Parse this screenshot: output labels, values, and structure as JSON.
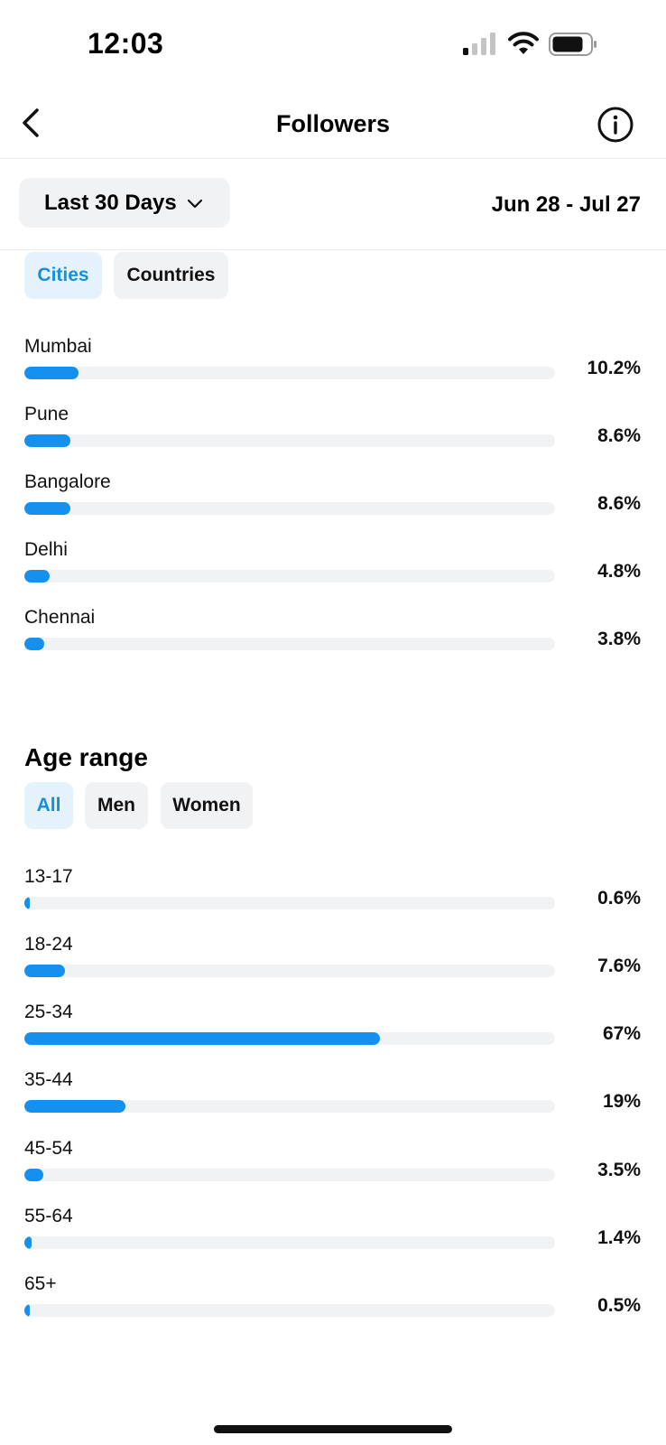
{
  "status_bar": {
    "time": "12:03"
  },
  "header": {
    "title": "Followers"
  },
  "date_filter": {
    "range_label": "Last 30 Days",
    "date_span": "Jun 28 - Jul 27"
  },
  "location": {
    "tabs": [
      {
        "label": "Cities",
        "active": true
      },
      {
        "label": "Countries",
        "active": false
      }
    ],
    "rows": [
      {
        "label": "Mumbai",
        "value": "10.2%",
        "fraction": 0.102
      },
      {
        "label": "Pune",
        "value": "8.6%",
        "fraction": 0.086
      },
      {
        "label": "Bangalore",
        "value": "8.6%",
        "fraction": 0.086
      },
      {
        "label": "Delhi",
        "value": "4.8%",
        "fraction": 0.048
      },
      {
        "label": "Chennai",
        "value": "3.8%",
        "fraction": 0.038
      }
    ]
  },
  "age_range": {
    "title": "Age range",
    "tabs": [
      {
        "label": "All",
        "active": true
      },
      {
        "label": "Men",
        "active": false
      },
      {
        "label": "Women",
        "active": false
      }
    ],
    "rows": [
      {
        "label": "13-17",
        "value": "0.6%",
        "fraction": 0.006
      },
      {
        "label": "18-24",
        "value": "7.6%",
        "fraction": 0.076
      },
      {
        "label": "25-34",
        "value": "67%",
        "fraction": 0.67
      },
      {
        "label": "35-44",
        "value": "19%",
        "fraction": 0.19
      },
      {
        "label": "45-54",
        "value": "3.5%",
        "fraction": 0.035
      },
      {
        "label": "55-64",
        "value": "1.4%",
        "fraction": 0.014
      },
      {
        "label": "65+",
        "value": "0.5%",
        "fraction": 0.005
      }
    ]
  },
  "colors": {
    "accent": "#1590ee",
    "track": "#f1f2f4",
    "active_chip_bg": "#e4f2fc",
    "active_chip_text": "#1a8fd8"
  }
}
